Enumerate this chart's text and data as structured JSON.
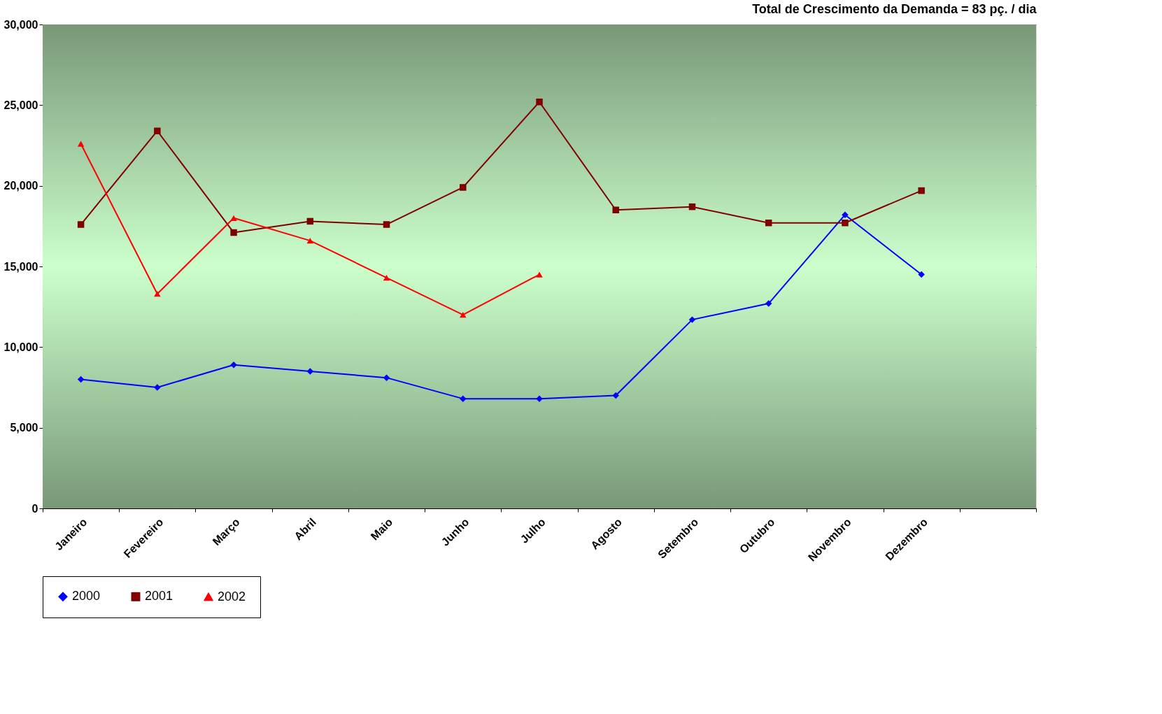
{
  "chart_data": {
    "type": "line",
    "title": "Total de Crescimento da Demanda = 83 pç. / dia",
    "categories": [
      "Janeiro",
      "Fevereiro",
      "Março",
      "Abril",
      "Maio",
      "Junho",
      "Julho",
      "Agosto",
      "Setembro",
      "Outubro",
      "Novembro",
      "Dezembro",
      null
    ],
    "series": [
      {
        "name": "2000",
        "color": "#0000ff",
        "marker": "diamond",
        "values": [
          8000,
          7500,
          8900,
          8500,
          8100,
          6800,
          6800,
          7000,
          11700,
          12700,
          18200,
          14500,
          null
        ]
      },
      {
        "name": "2001",
        "color": "#800000",
        "marker": "square",
        "values": [
          17600,
          23400,
          17100,
          17800,
          17600,
          19900,
          25200,
          18500,
          18700,
          17700,
          17700,
          19700,
          null
        ]
      },
      {
        "name": "2002",
        "color": "#ff0000",
        "marker": "triangle",
        "values": [
          22600,
          13300,
          18000,
          16600,
          14300,
          12000,
          14500,
          null,
          null,
          null,
          null,
          null,
          null
        ]
      }
    ],
    "ylim": [
      0,
      30000
    ],
    "yticks": [
      {
        "value": 0,
        "label": "0"
      },
      {
        "value": 5000,
        "label": "5,000"
      },
      {
        "value": 10000,
        "label": "10,000"
      },
      {
        "value": 15000,
        "label": "15,000"
      },
      {
        "value": 20000,
        "label": "20,000"
      },
      {
        "value": 25000,
        "label": "25,000"
      },
      {
        "value": 30000,
        "label": "30,000"
      }
    ],
    "grid": "y",
    "legend": "bottom",
    "line_style": "solid"
  }
}
